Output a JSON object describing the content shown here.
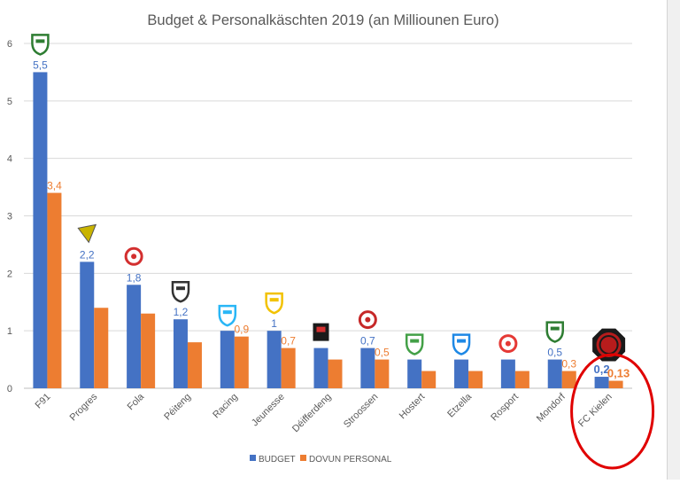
{
  "chart_data": {
    "type": "bar",
    "title": "Budget & Personalkäschten 2019 (an Milliounen Euro)",
    "xlabel": "",
    "ylabel": "",
    "ylim": [
      0,
      6
    ],
    "yticks": [
      0,
      1,
      2,
      3,
      4,
      5,
      6
    ],
    "grid": true,
    "legend_position": "bottom",
    "categories": [
      "F91",
      "Progres",
      "Fola",
      "Péiteng",
      "Racing",
      "Jeunesse",
      "Déifferdeng",
      "Stroossen",
      "Hostert",
      "Etzella",
      "Rosport",
      "Mondorf",
      "FC Kielen"
    ],
    "series": [
      {
        "name": "BUDGET",
        "color": "#4472c4",
        "values": [
          5.5,
          2.2,
          1.8,
          1.2,
          1.0,
          1.0,
          0.7,
          0.7,
          0.5,
          0.5,
          0.5,
          0.5,
          0.2
        ]
      },
      {
        "name": "DOVUN PERSONAL",
        "color": "#ed7d31",
        "values": [
          3.4,
          1.4,
          1.3,
          0.8,
          0.9,
          0.7,
          0.5,
          0.5,
          0.3,
          0.3,
          0.3,
          0.3,
          0.13
        ]
      }
    ],
    "data_labels": [
      {
        "category": "F91",
        "series": "BUDGET",
        "text": "5,5"
      },
      {
        "category": "F91",
        "series": "DOVUN PERSONAL",
        "text": "3,4"
      },
      {
        "category": "Progres",
        "series": "BUDGET",
        "text": "2,2"
      },
      {
        "category": "Fola",
        "series": "BUDGET",
        "text": "1,8"
      },
      {
        "category": "Péiteng",
        "series": "BUDGET",
        "text": "1,2"
      },
      {
        "category": "Racing",
        "series": "DOVUN PERSONAL",
        "text": "0,9"
      },
      {
        "category": "Jeunesse",
        "series": "BUDGET",
        "text": "1"
      },
      {
        "category": "Jeunesse",
        "series": "DOVUN PERSONAL",
        "text": "0,7"
      },
      {
        "category": "Stroossen",
        "series": "BUDGET",
        "text": "0,7"
      },
      {
        "category": "Stroossen",
        "series": "DOVUN PERSONAL",
        "text": "0,5"
      },
      {
        "category": "Mondorf",
        "series": "BUDGET",
        "text": "0,5"
      },
      {
        "category": "Mondorf",
        "series": "DOVUN PERSONAL",
        "text": "0,3"
      },
      {
        "category": "FC Kielen",
        "series": "BUDGET",
        "text": "0,2"
      },
      {
        "category": "FC Kielen",
        "series": "DOVUN PERSONAL",
        "text": "0,13"
      }
    ],
    "club_badges": [
      {
        "category": "F91",
        "icon": "f91-badge-icon",
        "color": "#2e7d32"
      },
      {
        "category": "Progres",
        "icon": "progres-badge-icon",
        "color": "#c9b400"
      },
      {
        "category": "Fola",
        "icon": "fola-badge-icon",
        "color": "#d32f2f"
      },
      {
        "category": "Péiteng",
        "icon": "peiteng-badge-icon",
        "color": "#333333"
      },
      {
        "category": "Racing",
        "icon": "racing-badge-icon",
        "color": "#29b6f6"
      },
      {
        "category": "Jeunesse",
        "icon": "jeunesse-badge-icon",
        "color": "#f2c200"
      },
      {
        "category": "Déifferdeng",
        "icon": "deifferdeng-badge-icon",
        "color": "#d32f2f"
      },
      {
        "category": "Stroossen",
        "icon": "stroossen-badge-icon",
        "color": "#c62828"
      },
      {
        "category": "Hostert",
        "icon": "hostert-badge-icon",
        "color": "#43a047"
      },
      {
        "category": "Etzella",
        "icon": "etzella-badge-icon",
        "color": "#1e88e5"
      },
      {
        "category": "Rosport",
        "icon": "rosport-badge-icon",
        "color": "#e53935"
      },
      {
        "category": "Mondorf",
        "icon": "mondorf-badge-icon",
        "color": "#2e7d32"
      },
      {
        "category": "FC Kielen",
        "icon": "fc-kielen-badge-icon",
        "color": "#b71c1c"
      }
    ],
    "highlight": {
      "category": "FC Kielen",
      "shape": "ellipse",
      "color": "#e00000"
    }
  }
}
